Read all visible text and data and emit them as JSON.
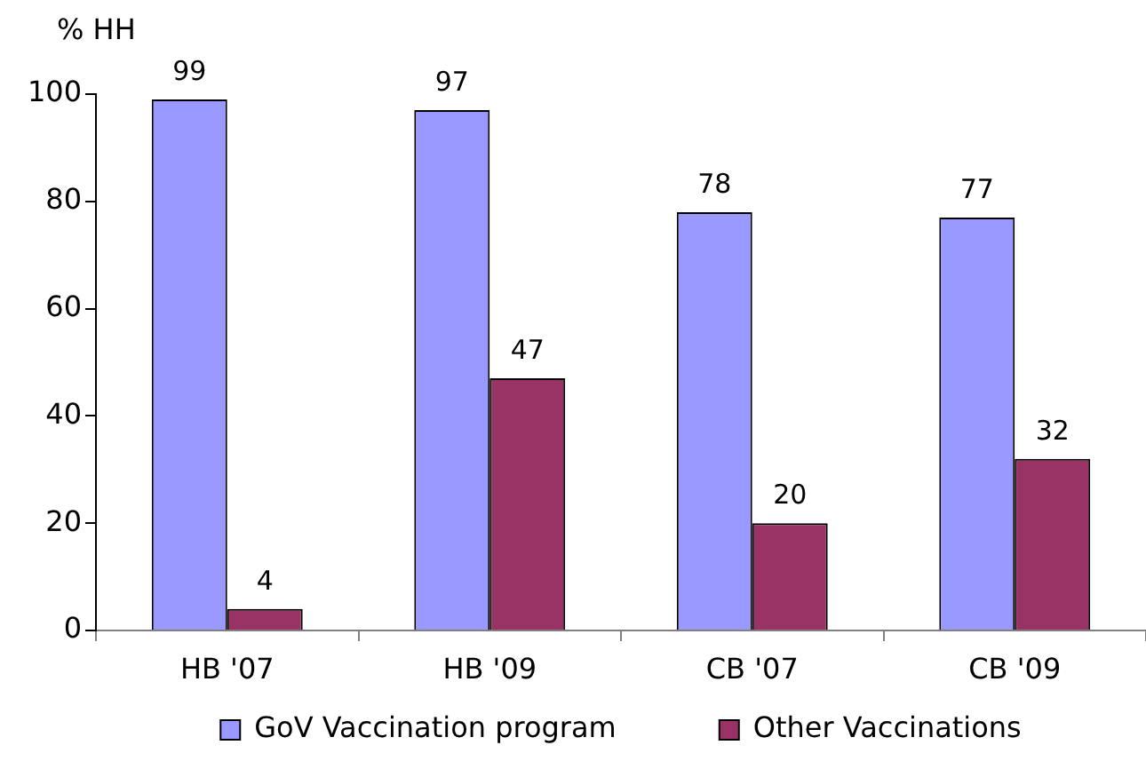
{
  "chart_data": {
    "type": "bar",
    "ylabel": "% HH",
    "categories": [
      "HB '07",
      "HB '09",
      "CB '07",
      "CB '09"
    ],
    "series": [
      {
        "name": "GoV Vaccination program",
        "color": "#9999ff",
        "values": [
          99,
          97,
          78,
          77
        ]
      },
      {
        "name": "Other Vaccinations",
        "color": "#993366",
        "values": [
          4,
          47,
          20,
          32
        ]
      }
    ],
    "ylim": [
      0,
      100
    ],
    "yticks": [
      0,
      20,
      40,
      60,
      80,
      100
    ],
    "grid": false,
    "legend": "bottom",
    "data_labels": true
  }
}
